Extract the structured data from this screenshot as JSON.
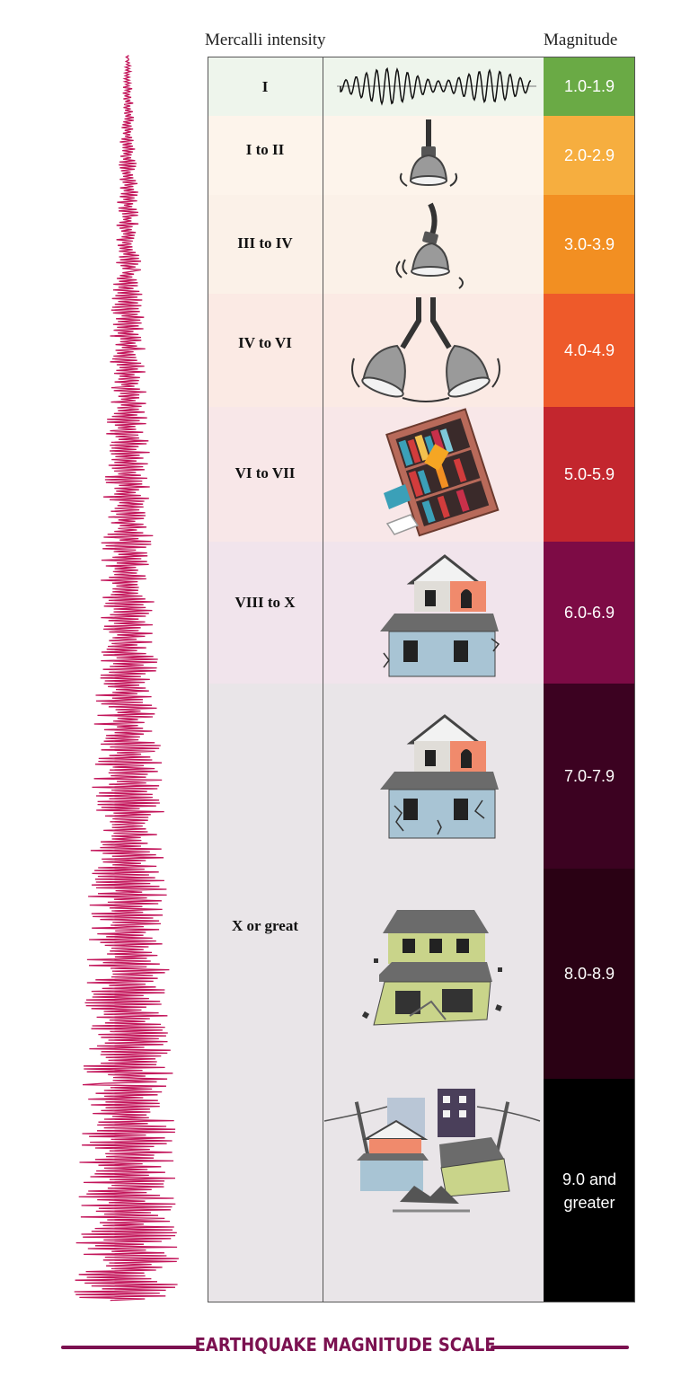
{
  "headers": {
    "intensity": "Mercalli intensity",
    "magnitude": "Magnitude"
  },
  "rows": [
    {
      "intensity": "I",
      "magnitude": "1.0-1.9",
      "color": "#6aaa45",
      "bg": "#eef5ec",
      "illustration": "seismogram-wave"
    },
    {
      "intensity": "I to II",
      "magnitude": "2.0-2.9",
      "color": "#f6ae3f",
      "bg": "#fdf4eb",
      "illustration": "hanging-lamp"
    },
    {
      "intensity": "III to IV",
      "magnitude": "3.0-3.9",
      "color": "#f28f22",
      "bg": "#fbf1e8",
      "illustration": "swinging-lamp"
    },
    {
      "intensity": "IV to VI",
      "magnitude": "4.0-4.9",
      "color": "#ee5a2a",
      "bg": "#fbeae4",
      "illustration": "two-lamps"
    },
    {
      "intensity": "VI to VII",
      "magnitude": "5.0-5.9",
      "color": "#c3262e",
      "bg": "#f8e7e8",
      "illustration": "falling-bookshelf"
    },
    {
      "intensity": "VIII to X",
      "magnitude": "6.0-6.9",
      "color": "#7d0b45",
      "bg": "#f1e4ec",
      "illustration": "cracked-house"
    },
    {
      "intensity": "X or great",
      "magnitude": "7.0-7.9",
      "color": "#3c0221",
      "bg": "#e9e5e8",
      "illustration": "damaged-house"
    },
    {
      "intensity": "",
      "magnitude": "8.0-8.9",
      "color": "#2a0114",
      "bg": "#e9e5e8",
      "illustration": "collapsing-house"
    },
    {
      "intensity": "",
      "magnitude": "9.0 and greater",
      "color": "#000000",
      "bg": "#e9e5e8",
      "illustration": "destroyed-town"
    }
  ],
  "seismogram": {
    "color": "#c3155a"
  },
  "title": "EARTHQUAKE MAGNITUDE SCALE"
}
